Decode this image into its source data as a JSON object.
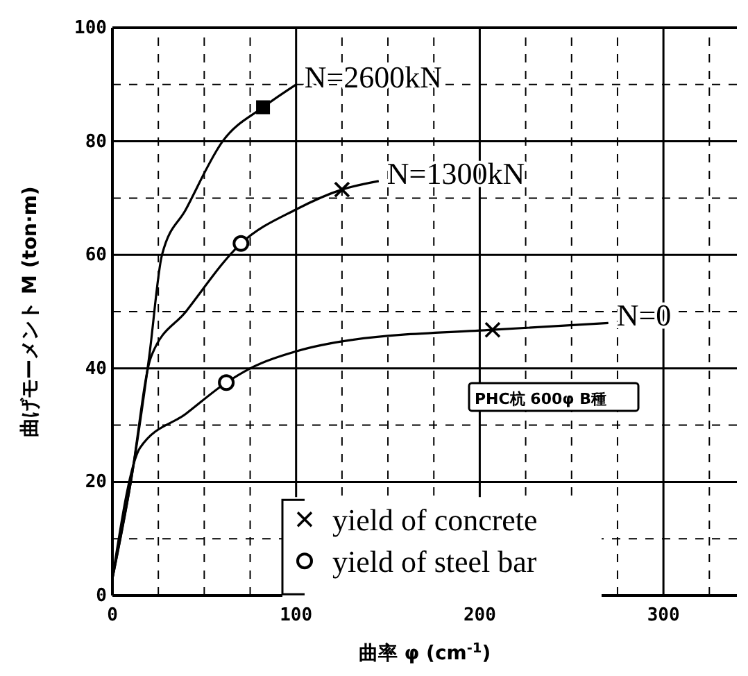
{
  "chart_data": {
    "type": "line",
    "xlabel": "曲率 φ (cm$^{-1}$)",
    "ylabel": "曲げモーメント M (ton·m)",
    "xlim": [
      0,
      340
    ],
    "ylim": [
      0,
      100
    ],
    "xticks": [
      0,
      100,
      200,
      300
    ],
    "yticks": [
      0,
      20,
      40,
      60,
      80,
      100
    ],
    "grid": true,
    "legend": "bottom left",
    "annotations": [
      "PHC杭 600φ B種"
    ],
    "series": [
      {
        "name": "N=2600kN",
        "color": "#000000",
        "x": [
          0,
          10,
          20,
          27,
          40,
          60,
          82,
          100
        ],
        "values": [
          3,
          20,
          42,
          60,
          68,
          80,
          86,
          90
        ]
      },
      {
        "name": "N=1300kN",
        "color": "#000000",
        "x": [
          0,
          10,
          21,
          40,
          70,
          100,
          125,
          145
        ],
        "values": [
          3,
          20,
          42,
          50,
          62,
          68,
          71.5,
          73
        ]
      },
      {
        "name": "N=0",
        "color": "#000000",
        "x": [
          0,
          15,
          40,
          62,
          75,
          100,
          130,
          207,
          270
        ],
        "values": [
          3,
          26,
          32,
          37.5,
          40,
          43,
          45,
          46.8,
          48
        ]
      },
      {
        "name": "yield of concrete",
        "type": "scatter",
        "marker": "cross",
        "color": "#000000",
        "x": [
          125,
          207
        ],
        "values": [
          71.5,
          46.8
        ]
      },
      {
        "name": "yield of steel bar",
        "type": "scatter",
        "marker": "circle",
        "color": "#000000",
        "x": [
          70,
          62
        ],
        "values": [
          62,
          37.5
        ]
      },
      {
        "type": "scatter",
        "marker": "square",
        "color": "#000000",
        "x": [
          82
        ],
        "values": [
          86
        ]
      }
    ]
  }
}
